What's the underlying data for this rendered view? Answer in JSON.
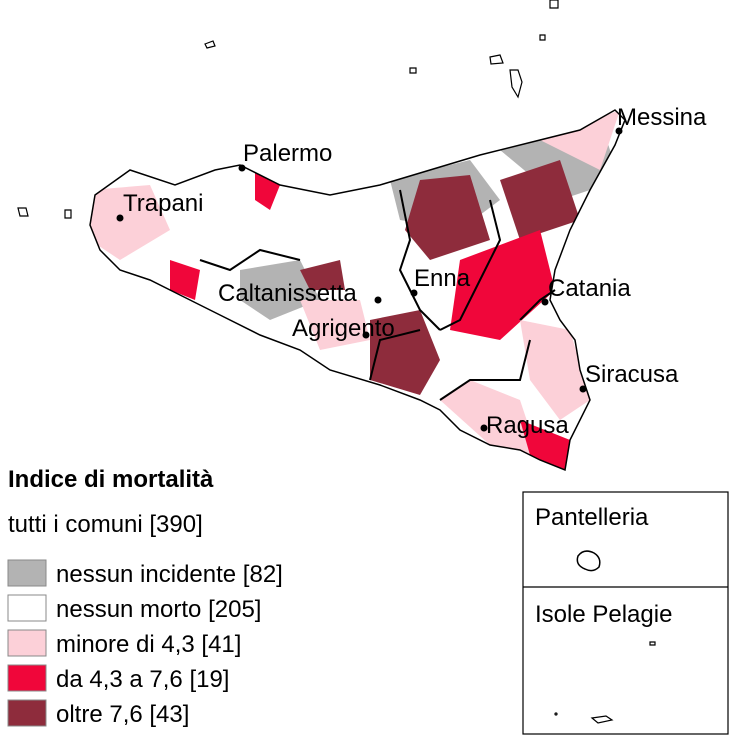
{
  "map": {
    "cities": [
      {
        "label": "Palermo"
      },
      {
        "label": "Trapani"
      },
      {
        "label": "Messina"
      },
      {
        "label": "Caltanissetta"
      },
      {
        "label": "Enna"
      },
      {
        "label": "Catania"
      },
      {
        "label": "Agrigento"
      },
      {
        "label": "Siracusa"
      },
      {
        "label": "Ragusa"
      }
    ]
  },
  "legend": {
    "title": "Indice di mortalità",
    "subtitle": "tutti i comuni [390]",
    "items": [
      {
        "label": "nessun incidente [82]",
        "color": "#b3b3b3"
      },
      {
        "label": "nessun morto [205]",
        "color": "#ffffff"
      },
      {
        "label": "minore di 4,3 [41]",
        "color": "#fcd0d8"
      },
      {
        "label": "da 4,3 a 7,6 [19]",
        "color": "#f0063a"
      },
      {
        "label": "oltre 7,6 [43]",
        "color": "#8e2c3c"
      }
    ]
  },
  "insets": [
    {
      "label": "Pantelleria"
    },
    {
      "label": "Isole Pelagie"
    }
  ]
}
